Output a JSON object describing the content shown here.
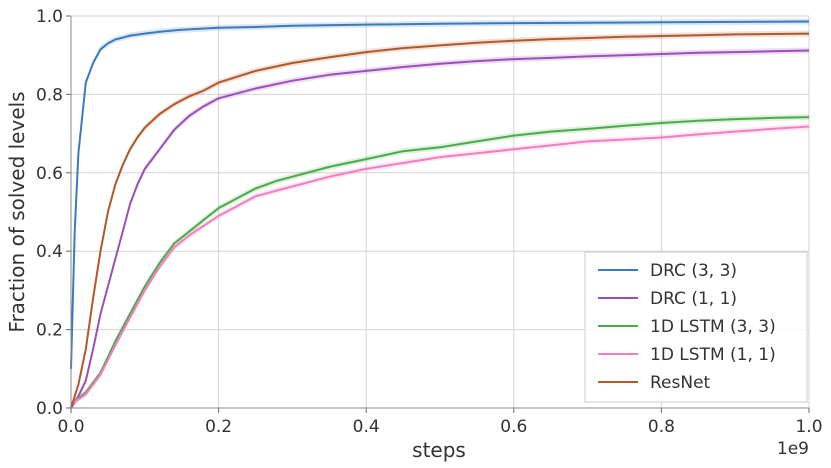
{
  "chart_data": {
    "type": "line",
    "title": "",
    "xlabel": "steps",
    "ylabel": "Fraction of solved levels",
    "x_scale_label": "1e9",
    "xlim": [
      0.0,
      1.0
    ],
    "ylim": [
      0.0,
      1.0
    ],
    "x_ticks": [
      "0.0",
      "0.2",
      "0.4",
      "0.6",
      "0.8",
      "1.0"
    ],
    "y_ticks": [
      "0.0",
      "0.2",
      "0.4",
      "0.6",
      "0.8",
      "1.0"
    ],
    "grid": true,
    "legend_position": "bottom-right",
    "series": [
      {
        "name": "DRC (3, 3)",
        "color": "#3a7bbf",
        "x": [
          0.0,
          0.005,
          0.01,
          0.02,
          0.03,
          0.04,
          0.05,
          0.06,
          0.07,
          0.08,
          0.1,
          0.12,
          0.15,
          0.2,
          0.25,
          0.3,
          0.4,
          0.5,
          0.6,
          0.7,
          0.8,
          0.9,
          1.0
        ],
        "y": [
          0.1,
          0.45,
          0.65,
          0.83,
          0.88,
          0.915,
          0.93,
          0.94,
          0.945,
          0.95,
          0.955,
          0.96,
          0.965,
          0.97,
          0.972,
          0.975,
          0.978,
          0.98,
          0.982,
          0.983,
          0.984,
          0.985,
          0.986
        ]
      },
      {
        "name": "DRC (1, 1)",
        "color": "#9b4fb8",
        "x": [
          0.0,
          0.01,
          0.02,
          0.03,
          0.04,
          0.05,
          0.06,
          0.07,
          0.08,
          0.09,
          0.1,
          0.12,
          0.14,
          0.16,
          0.18,
          0.2,
          0.25,
          0.3,
          0.35,
          0.4,
          0.45,
          0.5,
          0.55,
          0.6,
          0.65,
          0.7,
          0.75,
          0.8,
          0.85,
          0.9,
          0.95,
          1.0
        ],
        "y": [
          0.0,
          0.03,
          0.07,
          0.15,
          0.24,
          0.31,
          0.38,
          0.45,
          0.52,
          0.57,
          0.61,
          0.66,
          0.71,
          0.745,
          0.77,
          0.79,
          0.815,
          0.835,
          0.85,
          0.86,
          0.87,
          0.878,
          0.885,
          0.89,
          0.893,
          0.897,
          0.9,
          0.903,
          0.906,
          0.908,
          0.91,
          0.912
        ]
      },
      {
        "name": "1D LSTM (3, 3)",
        "color": "#4bab4a",
        "x": [
          0.0,
          0.02,
          0.04,
          0.06,
          0.08,
          0.1,
          0.12,
          0.14,
          0.16,
          0.18,
          0.2,
          0.22,
          0.25,
          0.28,
          0.3,
          0.35,
          0.4,
          0.45,
          0.5,
          0.55,
          0.6,
          0.65,
          0.7,
          0.75,
          0.8,
          0.85,
          0.9,
          0.95,
          1.0
        ],
        "y": [
          0.01,
          0.04,
          0.09,
          0.17,
          0.24,
          0.31,
          0.37,
          0.42,
          0.45,
          0.48,
          0.51,
          0.53,
          0.56,
          0.58,
          0.59,
          0.615,
          0.635,
          0.655,
          0.665,
          0.68,
          0.695,
          0.705,
          0.712,
          0.72,
          0.727,
          0.733,
          0.737,
          0.74,
          0.742
        ]
      },
      {
        "name": "1D LSTM (1, 1)",
        "color": "#f57dbf",
        "x": [
          0.0,
          0.02,
          0.04,
          0.06,
          0.08,
          0.1,
          0.12,
          0.14,
          0.16,
          0.18,
          0.2,
          0.22,
          0.25,
          0.28,
          0.3,
          0.35,
          0.4,
          0.45,
          0.5,
          0.55,
          0.6,
          0.65,
          0.7,
          0.75,
          0.8,
          0.85,
          0.9,
          0.95,
          1.0
        ],
        "y": [
          0.01,
          0.035,
          0.085,
          0.16,
          0.23,
          0.3,
          0.36,
          0.41,
          0.44,
          0.465,
          0.49,
          0.51,
          0.54,
          0.555,
          0.565,
          0.59,
          0.61,
          0.625,
          0.64,
          0.65,
          0.66,
          0.67,
          0.68,
          0.685,
          0.69,
          0.698,
          0.705,
          0.712,
          0.718
        ]
      },
      {
        "name": "ResNet",
        "color": "#b0592a",
        "x": [
          0.0,
          0.01,
          0.02,
          0.03,
          0.04,
          0.05,
          0.06,
          0.07,
          0.08,
          0.09,
          0.1,
          0.12,
          0.14,
          0.16,
          0.18,
          0.2,
          0.25,
          0.3,
          0.35,
          0.4,
          0.45,
          0.5,
          0.55,
          0.6,
          0.65,
          0.7,
          0.75,
          0.8,
          0.85,
          0.9,
          0.95,
          1.0
        ],
        "y": [
          0.0,
          0.06,
          0.15,
          0.28,
          0.4,
          0.5,
          0.57,
          0.62,
          0.66,
          0.69,
          0.715,
          0.75,
          0.775,
          0.795,
          0.81,
          0.83,
          0.86,
          0.88,
          0.895,
          0.908,
          0.918,
          0.925,
          0.932,
          0.937,
          0.941,
          0.944,
          0.947,
          0.949,
          0.951,
          0.953,
          0.954,
          0.955
        ]
      }
    ]
  }
}
